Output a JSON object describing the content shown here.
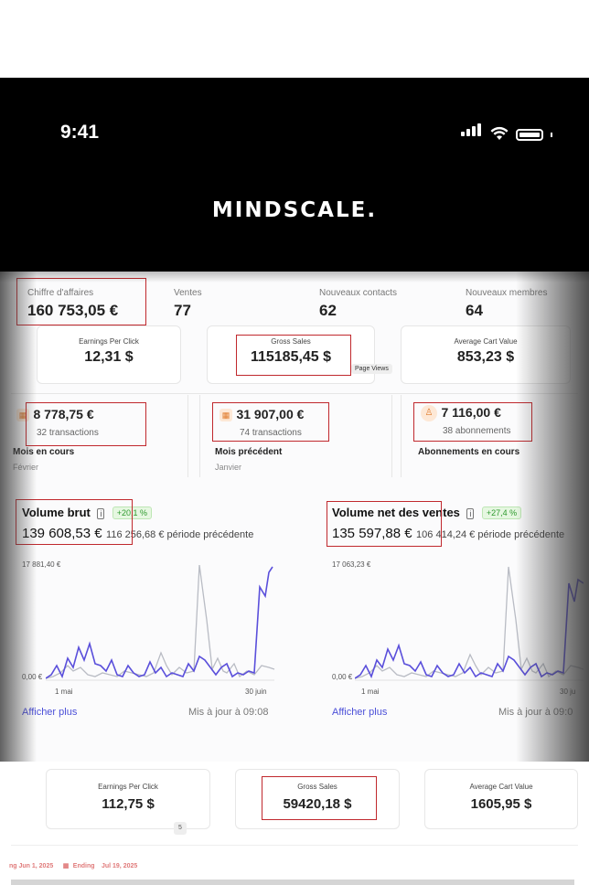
{
  "status_bar": {
    "time": "9:41"
  },
  "brand": "Mindscale.",
  "top_stats": [
    {
      "label": "Chiffre d'affaires",
      "value": "160 753,05 €"
    },
    {
      "label": "Ventes",
      "value": "77"
    },
    {
      "label": "Nouveaux contacts",
      "value": "62"
    },
    {
      "label": "Nouveaux membres",
      "value": "64"
    }
  ],
  "metric_cards": [
    {
      "label": "Earnings Per Click",
      "value": "12,31 $"
    },
    {
      "label": "Gross Sales",
      "value": "115185,45 $"
    },
    {
      "label": "Average Cart Value",
      "value": "853,23 $"
    }
  ],
  "tooltip": "Page Views",
  "transactions": [
    {
      "amount": "8 778,75 €",
      "sub": "32 transactions",
      "title": "Mois en cours",
      "period": "Février",
      "icon": "calendar-icon"
    },
    {
      "amount": "31 907,00 €",
      "sub": "74 transactions",
      "title": "Mois précédent",
      "period": "Janvier",
      "icon": "calendar-icon"
    },
    {
      "amount": "7 116,00 €",
      "sub": "38 abonnements",
      "title": "Abonnements en cours",
      "period": "",
      "icon": "user-icon"
    }
  ],
  "volume_brut": {
    "title": "Volume brut",
    "change": "+20,1 %",
    "amount": "139 608,53 €",
    "previous": "116 256,68 € période précédente",
    "ymax_label": "17 881,40 €",
    "ymin_label": "0,00 €",
    "x_start": "1 mai",
    "x_end": "30 juin",
    "link": "Afficher plus",
    "updated": "Mis à jour à 09:08"
  },
  "volume_net": {
    "title": "Volume net des ventes",
    "change": "+27,4 %",
    "amount": "135 597,88 €",
    "previous": "106 414,24 € période précédente",
    "ymax_label": "17 063,23 €",
    "ymin_label": "0,00 €",
    "x_start": "1 mai",
    "x_end": "30 ju",
    "link": "Afficher plus",
    "updated": "Mis à jour à 09:0"
  },
  "bottom_cards": [
    {
      "label": "Earnings Per Click",
      "value": "112,75 $"
    },
    {
      "label": "Gross Sales",
      "value": "59420,18 $"
    },
    {
      "label": "Average Cart Value",
      "value": "1605,95 $"
    }
  ],
  "small_marker": "5",
  "date_range": {
    "start": "ng   Jun 1, 2025",
    "end_label": "Ending",
    "end": "Jul 19, 2025"
  },
  "colors": {
    "accent": "#4b4fd8",
    "highlight_box": "#c0282d",
    "positive": "#2e9a2e",
    "secondary_line": "#b9bcc4"
  }
}
